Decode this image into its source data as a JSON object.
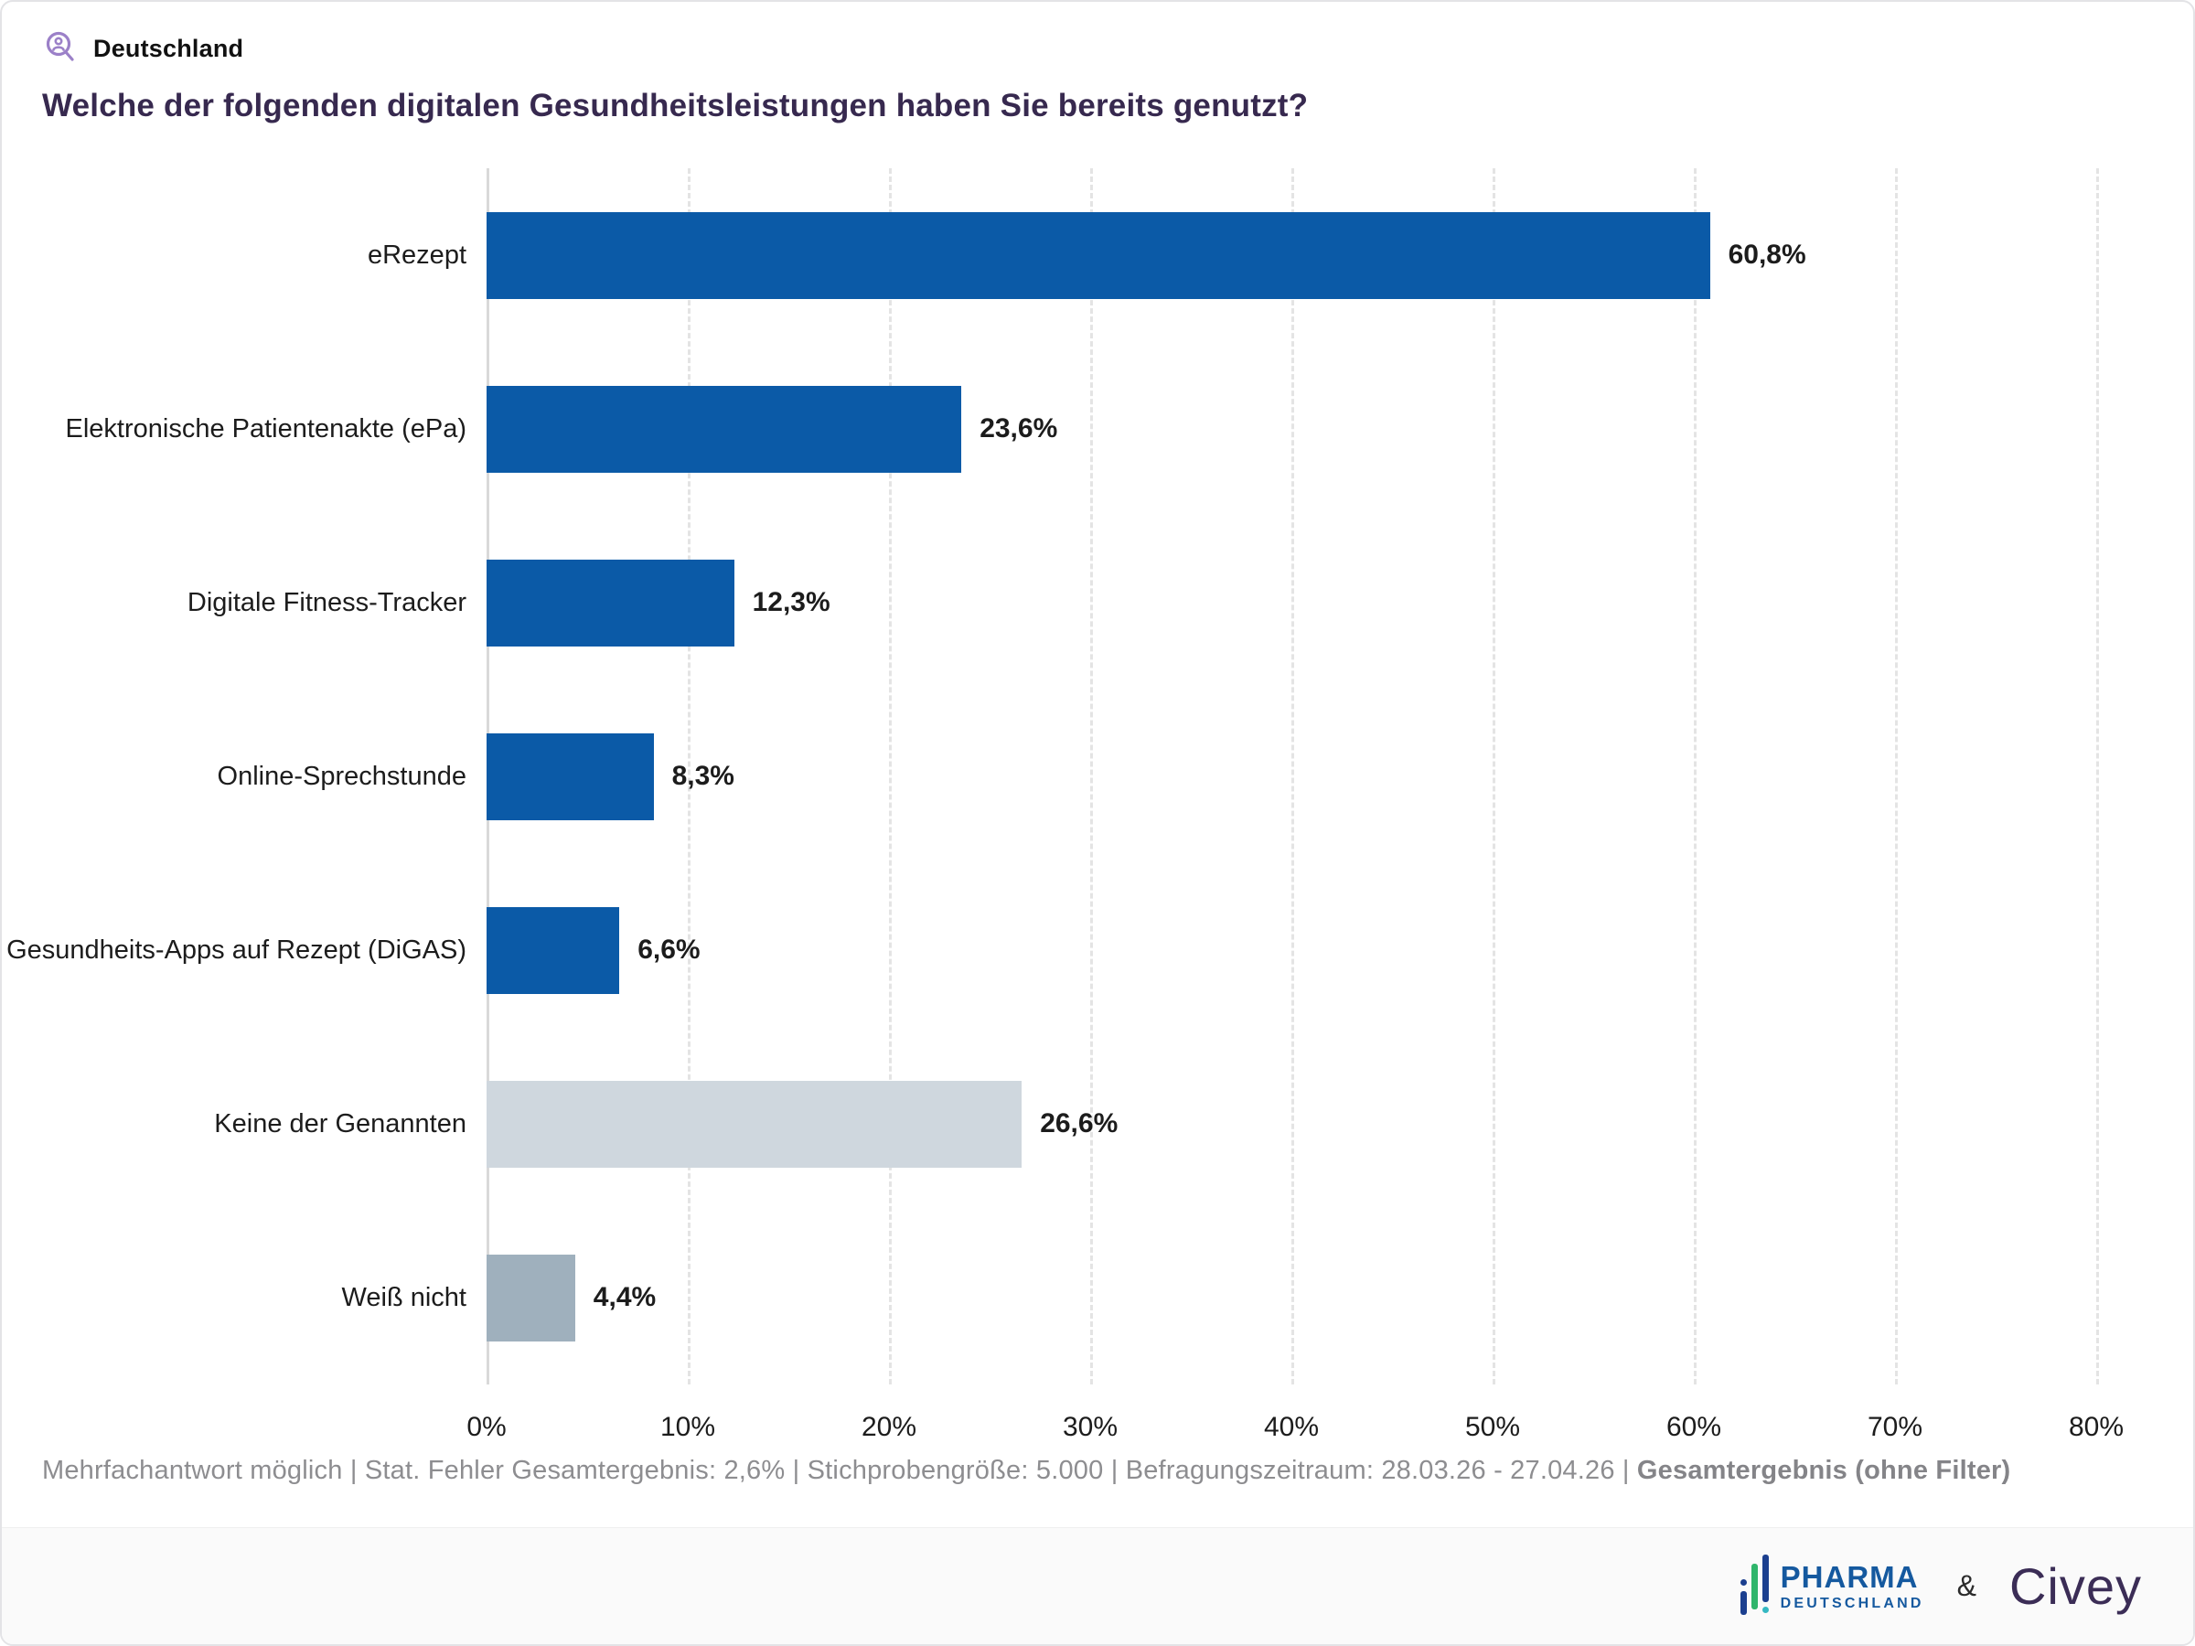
{
  "header": {
    "icon": "person-magnifier-icon",
    "region_label": "Deutschland"
  },
  "title": "Welche der folgenden digitalen Gesundheitsleistungen haben Sie bereits genutzt?",
  "chart_data": {
    "type": "bar",
    "orientation": "horizontal",
    "title": "Welche der folgenden digitalen Gesundheitsleistungen haben Sie bereits genutzt?",
    "categories": [
      "eRezept",
      "Elektronische Patientenakte (ePa)",
      "Digitale Fitness-Tracker",
      "Online-Sprechstunde",
      "Gesundheits-Apps auf Rezept (DiGAS)",
      "Keine der Genannten",
      "Weiß nicht"
    ],
    "values": [
      60.8,
      23.6,
      12.3,
      8.3,
      6.6,
      26.6,
      4.4
    ],
    "value_labels": [
      "60,8%",
      "23,6%",
      "12,3%",
      "8,3%",
      "6,6%",
      "26,6%",
      "4,4%"
    ],
    "bar_colors": [
      "#0b5aa7",
      "#0b5aa7",
      "#0b5aa7",
      "#0b5aa7",
      "#0b5aa7",
      "#cfd7de",
      "#9fb0bd"
    ],
    "xlim": [
      0,
      80
    ],
    "x_ticks": [
      "0%",
      "10%",
      "20%",
      "30%",
      "40%",
      "50%",
      "60%",
      "70%",
      "80%"
    ],
    "grid": "vertical dashed gridlines, solid zero axis",
    "legend": "none"
  },
  "footnote": {
    "separator": " | ",
    "segments": [
      {
        "text": "Mehrfachantwort möglich",
        "bold": false
      },
      {
        "text": "Stat. Fehler Gesamtergebnis: 2,6%",
        "bold": false
      },
      {
        "text": "Stichprobengröße: 5.000",
        "bold": false
      },
      {
        "text": "Befragungszeitraum: 28.03.26 - 27.04.26",
        "bold": false
      },
      {
        "text": "Gesamtergebnis (ohne Filter)",
        "bold": true
      }
    ]
  },
  "branding": {
    "pharma_line1": "PHARMA",
    "pharma_line2": "DEUTSCHLAND",
    "ampersand": "&",
    "civey": "Civey"
  },
  "colors": {
    "primary_bar": "#0b5aa7",
    "none_bar": "#cfd7de",
    "unknown_bar": "#9fb0bd",
    "title_text": "#37294f",
    "header_icon": "#9b80c8",
    "footnote_text": "#8d8d90",
    "pharma_blue": "#15599f",
    "civey_purple": "#3b2d56"
  }
}
